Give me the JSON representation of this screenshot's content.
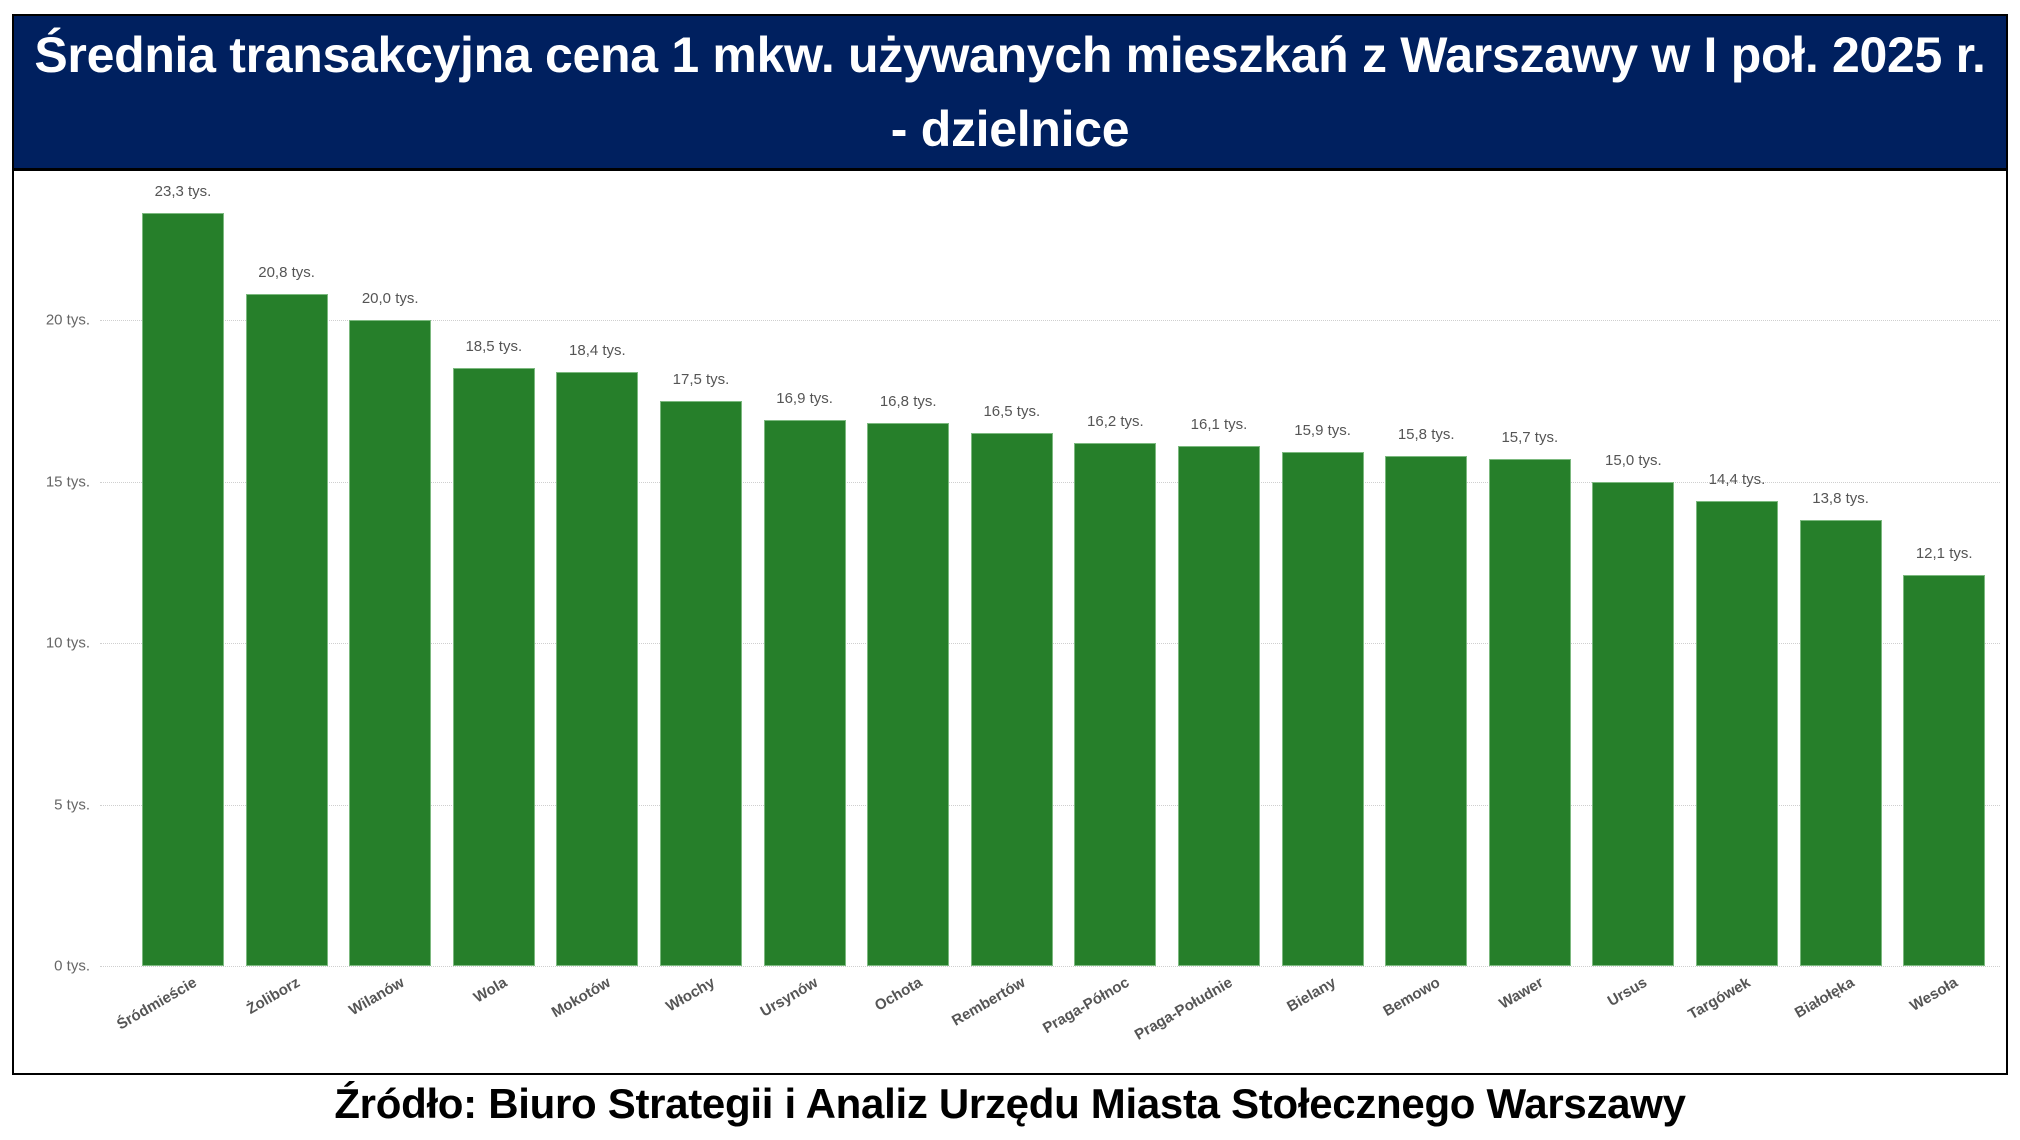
{
  "header": {
    "title": "Średnia transakcyjna cena 1 mkw. używanych mieszkań z Warszawy w I poł. 2025 r. - dzielnice"
  },
  "footer": {
    "source": "Źródło: Biuro Strategii i Analiz Urzędu Miasta Stołecznego Warszawy"
  },
  "colors": {
    "header_bg": "#00205F",
    "bar": "#267F2A",
    "label_text": "#555555"
  },
  "chart_data": {
    "type": "bar",
    "title": "Średnia transakcyjna cena 1 mkw. używanych mieszkań z Warszawy w I poł. 2025 r. - dzielnice",
    "xlabel": "",
    "ylabel": "",
    "ylim": [
      0,
      23.3
    ],
    "unit": "tys. zł/m²",
    "grid": true,
    "legend": null,
    "y_ticks": [
      "0 tys.",
      "5 tys.",
      "10 tys.",
      "15 tys.",
      "20 tys."
    ],
    "y_tick_values": [
      0,
      5,
      10,
      15,
      20
    ],
    "categories": [
      "Śródmieście",
      "Żoliborz",
      "Wilanów",
      "Wola",
      "Mokotów",
      "Włochy",
      "Ursynów",
      "Ochota",
      "Rembertów",
      "Praga-Północ",
      "Praga-Południe",
      "Bielany",
      "Bemowo",
      "Wawer",
      "Ursus",
      "Targówek",
      "Białołęka",
      "Wesoła"
    ],
    "values": [
      23.3,
      20.8,
      20.0,
      18.5,
      18.4,
      17.5,
      16.9,
      16.8,
      16.5,
      16.2,
      16.1,
      15.9,
      15.8,
      15.7,
      15.0,
      14.4,
      13.8,
      12.1
    ],
    "data_labels": [
      "23,3 tys.",
      "20,8 tys.",
      "20,0 tys.",
      "18,5 tys.",
      "18,4 tys.",
      "17,5 tys.",
      "16,9 tys.",
      "16,8 tys.",
      "16,5 tys.",
      "16,2 tys.",
      "16,1 tys.",
      "15,9 tys.",
      "15,8 tys.",
      "15,7 tys.",
      "15,0 tys.",
      "14,4 tys.",
      "13,8 tys.",
      "12,1 tys."
    ]
  }
}
